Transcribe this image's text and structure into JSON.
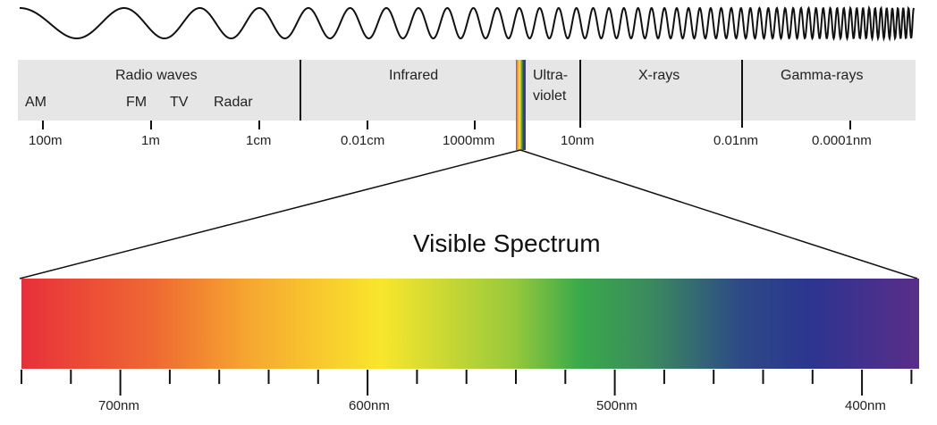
{
  "wave": {
    "name": "wave-icon"
  },
  "bands": {
    "radio": "Radio waves",
    "infrared": "Infrared",
    "ultraviolet_1": "Ultra-",
    "ultraviolet_2": "violet",
    "xrays": "X-rays",
    "gamma": "Gamma-rays"
  },
  "sub_bands": {
    "am": "AM",
    "fm": "FM",
    "tv": "TV",
    "radar": "Radar"
  },
  "scale_labels": [
    "100m",
    "1m",
    "1cm",
    "0.01cm",
    "1000mm",
    "10nm",
    "0.01nm",
    "0.0001nm"
  ],
  "title": "Visible Spectrum",
  "visible_labels": [
    "700nm",
    "600nm",
    "500nm",
    "400nm"
  ],
  "colors": {
    "band_background": "#e6e6e6",
    "spectrum_gradient": [
      "#e8303a",
      "#f08030",
      "#f9e22c",
      "#3aaa4a",
      "#2c3590",
      "#5a2d8a"
    ]
  }
}
